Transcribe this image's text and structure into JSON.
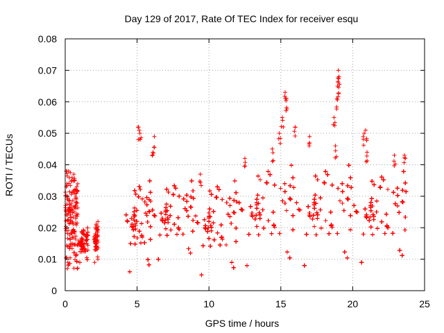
{
  "chart_data": {
    "type": "scatter",
    "title": "Day 129 of 2017, Rate Of TEC Index for receiver esqu",
    "xlabel": "GPS time / hours",
    "ylabel": "ROTI / TECUs",
    "xlim": [
      0,
      25
    ],
    "ylim": [
      0,
      0.08
    ],
    "xticks": [
      0,
      5,
      10,
      15,
      20,
      25
    ],
    "xtick_labels": [
      "0",
      "5",
      "10",
      "15",
      "20",
      "25"
    ],
    "yticks": [
      0,
      0.01,
      0.02,
      0.03,
      0.04,
      0.05,
      0.06,
      0.07,
      0.08
    ],
    "ytick_labels": [
      "0",
      "0.01",
      "0.02",
      "0.03",
      "0.04",
      "0.05",
      "0.06",
      "0.07",
      "0.08"
    ],
    "grid": true,
    "marker": "+",
    "marker_color": "#ff0000",
    "series": [
      {
        "name": "ROTI",
        "segments": [
          {
            "x_range": [
              0.0,
              0.9
            ],
            "y_range": [
              0.007,
              0.038
            ]
          },
          {
            "x_range": [
              0.9,
              1.6
            ],
            "y_range": [
              0.009,
              0.02
            ]
          },
          {
            "x_range": [
              2.0,
              2.3
            ],
            "y_range": [
              0.009,
              0.022
            ]
          },
          {
            "x_range": [
              4.2,
              6.0
            ],
            "y_range": [
              0.006,
              0.035
            ]
          },
          {
            "x_range": [
              6.0,
              9.0
            ],
            "y_range": [
              0.01,
              0.035
            ]
          },
          {
            "x_range": [
              9.0,
              12.0
            ],
            "y_range": [
              0.005,
              0.035
            ]
          },
          {
            "x_range": [
              12.0,
              16.0
            ],
            "y_range": [
              0.008,
              0.04
            ]
          },
          {
            "x_range": [
              16.0,
              20.0
            ],
            "y_range": [
              0.008,
              0.04
            ]
          },
          {
            "x_range": [
              20.0,
              23.8
            ],
            "y_range": [
              0.009,
              0.038
            ]
          }
        ],
        "notable_points": [
          {
            "x": 0.1,
            "y": 0.038
          },
          {
            "x": 0.6,
            "y": 0.037
          },
          {
            "x": 5.1,
            "y": 0.052
          },
          {
            "x": 5.2,
            "y": 0.05
          },
          {
            "x": 6.2,
            "y": 0.049
          },
          {
            "x": 6.1,
            "y": 0.044
          },
          {
            "x": 9.4,
            "y": 0.037
          },
          {
            "x": 12.5,
            "y": 0.042
          },
          {
            "x": 14.4,
            "y": 0.045
          },
          {
            "x": 14.9,
            "y": 0.05
          },
          {
            "x": 15.1,
            "y": 0.055
          },
          {
            "x": 15.3,
            "y": 0.063
          },
          {
            "x": 15.4,
            "y": 0.061
          },
          {
            "x": 16.0,
            "y": 0.052
          },
          {
            "x": 17.0,
            "y": 0.049
          },
          {
            "x": 18.7,
            "y": 0.055
          },
          {
            "x": 18.9,
            "y": 0.061
          },
          {
            "x": 18.95,
            "y": 0.065
          },
          {
            "x": 19.0,
            "y": 0.07
          },
          {
            "x": 19.05,
            "y": 0.068
          },
          {
            "x": 18.8,
            "y": 0.046
          },
          {
            "x": 20.8,
            "y": 0.05
          },
          {
            "x": 20.9,
            "y": 0.051
          },
          {
            "x": 21.0,
            "y": 0.044
          },
          {
            "x": 22.9,
            "y": 0.043
          },
          {
            "x": 23.6,
            "y": 0.043
          }
        ]
      }
    ]
  }
}
